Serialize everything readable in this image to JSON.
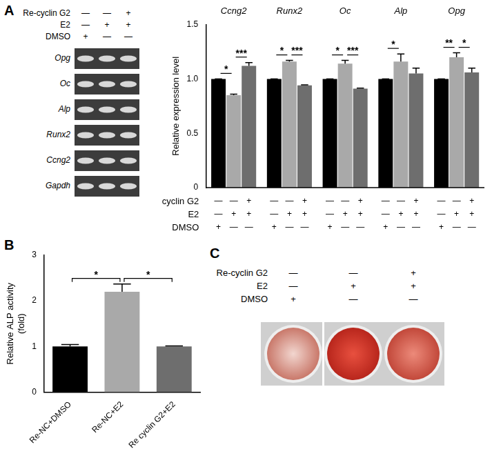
{
  "panel_labels": [
    "A",
    "B",
    "C"
  ],
  "gel": {
    "conditions": [
      {
        "label": "Re-cyclin G2",
        "signs": [
          "—",
          "—",
          "+"
        ]
      },
      {
        "label": "E2",
        "signs": [
          "—",
          "+",
          "+"
        ]
      },
      {
        "label": "DMSO",
        "signs": [
          "+",
          "—",
          "—"
        ]
      }
    ],
    "genes": [
      "Opg",
      "Oc",
      "Alp",
      "Runx2",
      "Ccng2",
      "Gapdh"
    ]
  },
  "chart_data": [
    {
      "type": "bar",
      "y_label": "Relative expression level",
      "categories": [
        "Ccng2",
        "Runx2",
        "Oc",
        "Alp",
        "Opg"
      ],
      "series": [
        {
          "color": "#000000",
          "values": [
            1.0,
            1.0,
            1.0,
            1.0,
            1.0
          ],
          "errors": [
            0,
            0,
            0,
            0,
            0
          ]
        },
        {
          "color": "#a9a9a9",
          "values": [
            0.85,
            1.16,
            1.14,
            1.16,
            1.2
          ],
          "errors": [
            0.01,
            0.01,
            0.03,
            0.07,
            0.04
          ]
        },
        {
          "color": "#6e6e6e",
          "values": [
            1.12,
            0.94,
            0.91,
            1.05,
            1.06
          ],
          "errors": [
            0.03,
            0.005,
            0.005,
            0.05,
            0.04
          ]
        }
      ],
      "ylim": [
        0,
        1.5
      ],
      "yticks": [
        0,
        0.5,
        {
          "value": 1,
          "label": "1.0"
        },
        1.5
      ],
      "grid": false,
      "conditions": [
        {
          "label": "cyclin G2",
          "signs": [
            "—",
            "—",
            "+"
          ]
        },
        {
          "label": "E2",
          "signs": [
            "—",
            "+",
            "+"
          ]
        },
        {
          "label": "DMSO",
          "signs": [
            "+",
            "—",
            "—"
          ]
        }
      ],
      "significance": [
        {
          "category": 0,
          "from": 0,
          "to": 1,
          "text": "*"
        },
        {
          "category": 0,
          "from": 1,
          "to": 2,
          "text": "***"
        },
        {
          "category": 1,
          "from": 0,
          "to": 1,
          "text": "*"
        },
        {
          "category": 1,
          "from": 1,
          "to": 2,
          "text": "***"
        },
        {
          "category": 2,
          "from": 0,
          "to": 1,
          "text": "*"
        },
        {
          "category": 2,
          "from": 1,
          "to": 2,
          "text": "***"
        },
        {
          "category": 3,
          "from": 0,
          "to": 1,
          "text": "*"
        },
        {
          "category": 4,
          "from": 0,
          "to": 1,
          "text": "**"
        },
        {
          "category": 4,
          "from": 1,
          "to": 2,
          "text": "*"
        }
      ]
    },
    {
      "type": "bar",
      "y_label": [
        "Relative ALP activity",
        "(fold)"
      ],
      "categories": [
        "Re-NC+DMSO",
        "Re-NC+E2",
        "Re cyclin G2+E2"
      ],
      "values": [
        1.0,
        2.2,
        1.0
      ],
      "errors": [
        0.04,
        0.17,
        0.01
      ],
      "colors": [
        "#000000",
        "#a9a9a9",
        "#6e6e6e"
      ],
      "ylim": [
        0,
        3
      ],
      "yticks": [
        0,
        1,
        2,
        3
      ],
      "grid": false,
      "significance": [
        {
          "from": 0,
          "to": 1,
          "text": "*"
        },
        {
          "from": 1,
          "to": 2,
          "text": "*"
        }
      ]
    }
  ],
  "stain": {
    "conditions": [
      {
        "label": "Re-cyclin G2",
        "signs": [
          "—",
          "—",
          "+"
        ]
      },
      {
        "label": "E2",
        "signs": [
          "—",
          "+",
          "+"
        ]
      },
      {
        "label": "DMSO",
        "signs": [
          "+",
          "—",
          "—"
        ]
      }
    ]
  }
}
